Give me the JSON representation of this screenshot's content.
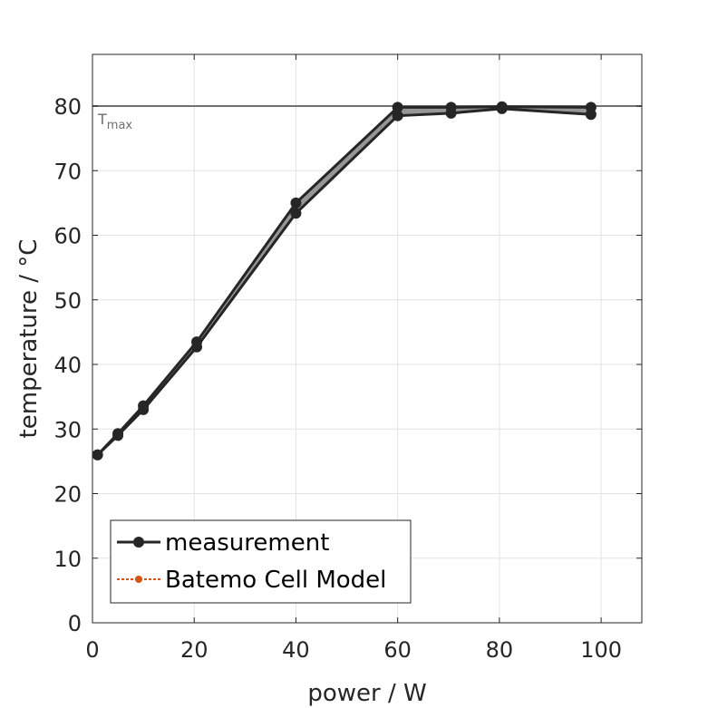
{
  "chart_data": {
    "type": "line",
    "xlabel": "power / W",
    "ylabel": "temperature / °C",
    "xlim": [
      0,
      108
    ],
    "ylim": [
      0,
      88
    ],
    "xticks": [
      0,
      20,
      40,
      60,
      80,
      100
    ],
    "yticks": [
      0,
      10,
      20,
      30,
      40,
      50,
      60,
      70,
      80
    ],
    "grid": true,
    "legend_position": "bottom-left",
    "reference_line": {
      "y": 80,
      "label_main": "T",
      "label_sub": "max",
      "color": "#707070"
    },
    "series": [
      {
        "name": "measurement",
        "color": "#262626",
        "band_fill": "#969696",
        "x": [
          1,
          5,
          10,
          20.5,
          40,
          60,
          70.5,
          80.5,
          98
        ],
        "y_upper": [
          26,
          29.3,
          33.6,
          43.5,
          65,
          79.8,
          79.8,
          79.9,
          79.8
        ],
        "y_lower": [
          26,
          29.0,
          33.0,
          42.7,
          63.4,
          78.5,
          78.9,
          79.6,
          78.7
        ]
      },
      {
        "name": "Batemo Cell Model",
        "color": "#d95319",
        "x": [],
        "y": []
      }
    ]
  }
}
